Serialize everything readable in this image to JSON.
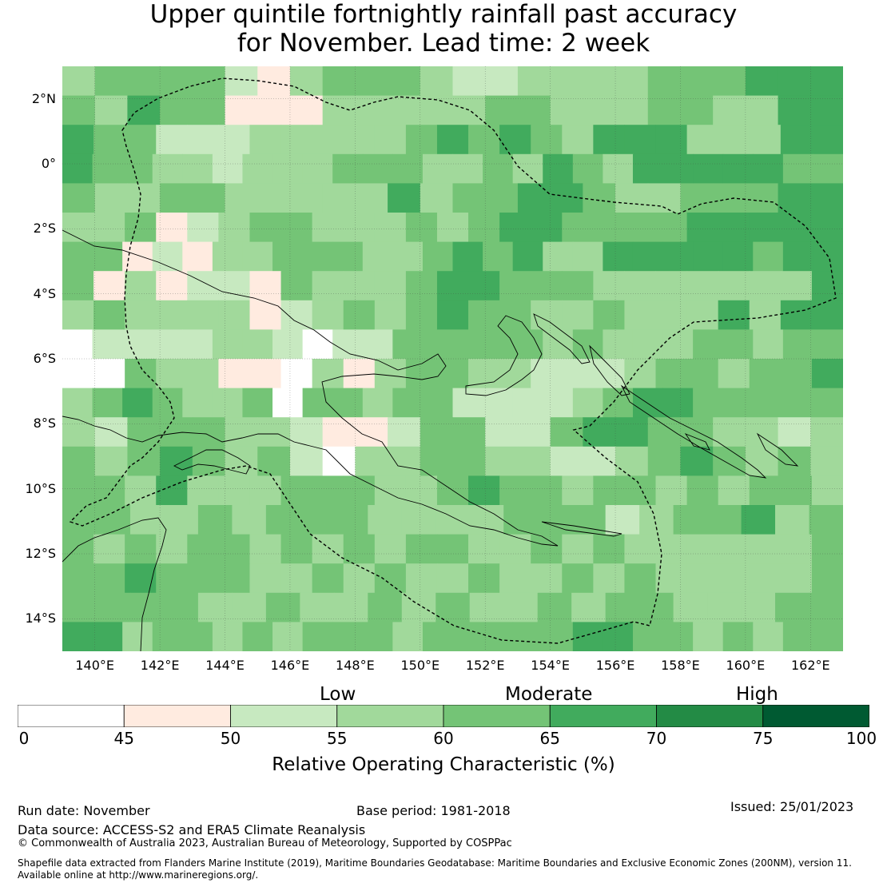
{
  "title_line1": "Upper quintile fortnightly rainfall past accuracy",
  "title_line2": "for November. Lead time: 2 week",
  "map": {
    "lon_range": [
      139,
      163
    ],
    "lat_range": [
      -15,
      3
    ],
    "cell_deg": 0.8,
    "lon_ticks": [
      "140°E",
      "142°E",
      "144°E",
      "146°E",
      "148°E",
      "150°E",
      "152°E",
      "154°E",
      "156°E",
      "158°E",
      "160°E",
      "162°E"
    ],
    "lat_ticks": [
      "2°N",
      "0°",
      "2°S",
      "4°S",
      "6°S",
      "8°S",
      "10°S",
      "12°S",
      "14°S"
    ],
    "grid_rows": [
      "344442134443223333444555",
      "435441113333344333443355",
      "5442223333345454355533355",
      "54433233344433435435555544",
      "433443333353445543344455",
      "3341234433343455444455555",
      "44121334443345453355555455",
      "4131221433345544433333335",
      "3433331234345443343335355",
      "02222332022444443433344344",
      "0043311031344332223443445",
      "34543340443442222345544444",
      "324443321124422455443323",
      "434543420334433223454343",
      "4435333444334544344343443",
      "44334344433334442344534",
      "4343443434344334343333334",
      "4454443343433433434333334",
      "44443343343433434433344",
      "55344343444344444554434344"
    ],
    "colors": {
      "0": "#ffffff",
      "1": "#ffebe0",
      "2": "#c7e9c0",
      "3": "#a1d99b",
      "4": "#74c476",
      "5": "#41ab5d",
      "6": "#238b45",
      "7": "#005a32"
    }
  },
  "colorbar": {
    "bounds": [
      0,
      45,
      50,
      55,
      60,
      65,
      70,
      75,
      100
    ],
    "labels": [
      "0",
      "45",
      "50",
      "55",
      "60",
      "65",
      "70",
      "75",
      "100"
    ],
    "colors": [
      "#ffffff",
      "#ffebe0",
      "#c7e9c0",
      "#a1d99b",
      "#74c476",
      "#41ab5d",
      "#238b45",
      "#005a32"
    ],
    "categories": [
      "Low",
      "Moderate",
      "High"
    ],
    "title": "Relative Operating Characteristic (%)"
  },
  "footer": {
    "run_date": "Run date: November",
    "base_period": "Base period: 1981-2018",
    "issued": "Issued: 25/01/2023",
    "data_source": "Data source: ACCESS-S2 and ERA5 Climate Reanalysis",
    "copyright": "© Commonwealth of Australia 2023, Australian Bureau of Meteorology, Supported by COSPPac",
    "shapefile_1": "Shapefile data extracted from Flanders Marine Institute (2019), Maritime Boundaries Geodatabase: Maritime Boundaries and Exclusive Economic Zones (200NM), version 11.",
    "shapefile_2": "Available online at http://www.marineregions.org/."
  }
}
